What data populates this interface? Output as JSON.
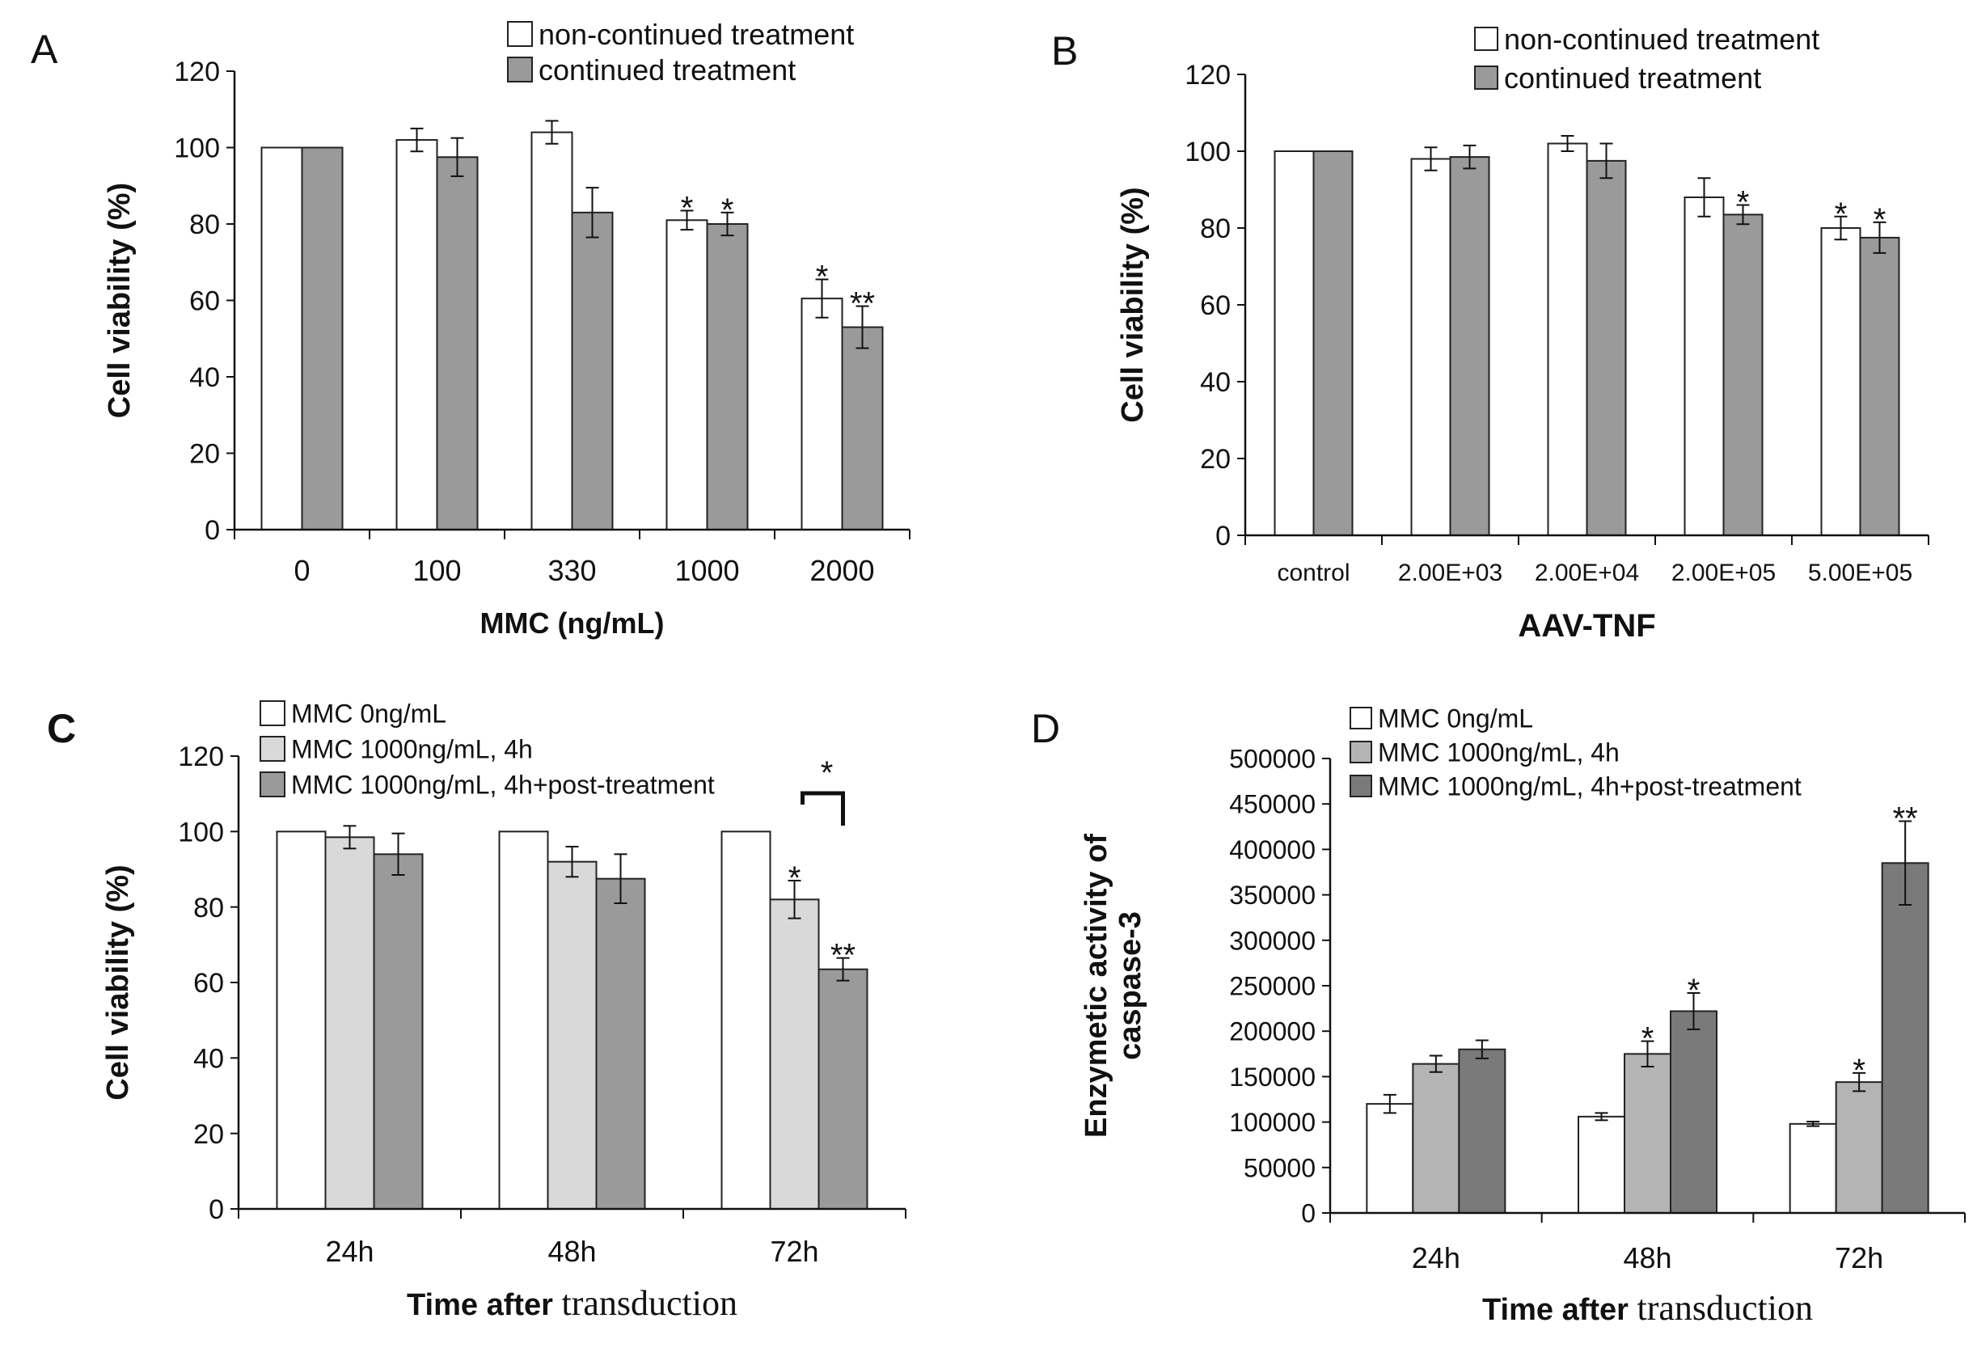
{
  "chart_data": [
    {
      "panel": "A",
      "type": "bar",
      "ylabel": "Cell viability (%)",
      "xlabel": "MMC (ng/mL)",
      "xlabel_parts": null,
      "categories": [
        "0",
        "100",
        "330",
        "1000",
        "2000"
      ],
      "ylim": [
        0,
        120
      ],
      "yticks": [
        0,
        20,
        40,
        60,
        80,
        100,
        120
      ],
      "series": [
        {
          "name": "non-continued treatment",
          "color": "#ffffff",
          "values": [
            100,
            102,
            104,
            81,
            60.5
          ],
          "errors": [
            0,
            3,
            3,
            2.5,
            5
          ]
        },
        {
          "name": "continued treatment",
          "color": "#9a9a9a",
          "values": [
            100,
            97.5,
            83,
            80,
            53
          ],
          "errors": [
            0,
            5,
            6.5,
            3,
            5.5
          ]
        }
      ],
      "annotations": [
        {
          "category": 3,
          "series": 0,
          "text": "*"
        },
        {
          "category": 3,
          "series": 1,
          "text": "*"
        },
        {
          "category": 4,
          "series": 0,
          "text": "*"
        },
        {
          "category": 4,
          "series": 1,
          "text": "**"
        }
      ],
      "bracket": null
    },
    {
      "panel": "B",
      "type": "bar",
      "ylabel": "Cell viability (%)",
      "xlabel": "AAV-TNF",
      "xlabel_parts": null,
      "categories": [
        "control",
        "2.00E+03",
        "2.00E+04",
        "2.00E+05",
        "5.00E+05"
      ],
      "ylim": [
        0,
        120
      ],
      "yticks": [
        0,
        20,
        40,
        60,
        80,
        100,
        120
      ],
      "series": [
        {
          "name": "non-continued treatment",
          "color": "#ffffff",
          "values": [
            100,
            98,
            102,
            88,
            80
          ],
          "errors": [
            0,
            3,
            2,
            5,
            3
          ]
        },
        {
          "name": "continued treatment",
          "color": "#9a9a9a",
          "values": [
            100,
            98.5,
            97.5,
            83.5,
            77.5
          ],
          "errors": [
            0,
            3,
            4.5,
            2.5,
            4
          ]
        }
      ],
      "annotations": [
        {
          "category": 3,
          "series": 1,
          "text": "*"
        },
        {
          "category": 4,
          "series": 0,
          "text": "*"
        },
        {
          "category": 4,
          "series": 1,
          "text": "*"
        }
      ],
      "bracket": null
    },
    {
      "panel": "C",
      "type": "bar",
      "ylabel": "Cell viability (%)",
      "xlabel": null,
      "xlabel_parts": [
        "Time after",
        "transduction"
      ],
      "categories": [
        "24h",
        "48h",
        "72h"
      ],
      "ylim": [
        0,
        120
      ],
      "yticks": [
        0,
        20,
        40,
        60,
        80,
        100,
        120
      ],
      "series": [
        {
          "name": "MMC 0ng/mL",
          "color": "#ffffff",
          "values": [
            100,
            100,
            100
          ],
          "errors": [
            0,
            0,
            0
          ]
        },
        {
          "name": "MMC 1000ng/mL, 4h",
          "color": "#d9d9d9",
          "values": [
            98.5,
            92,
            82
          ],
          "errors": [
            3,
            4,
            5
          ]
        },
        {
          "name": "MMC 1000ng/mL, 4h+post-treatment",
          "color": "#9a9a9a",
          "values": [
            94,
            87.5,
            63.5
          ],
          "errors": [
            5.5,
            6.5,
            3
          ]
        }
      ],
      "annotations": [
        {
          "category": 2,
          "series": 1,
          "text": "*"
        },
        {
          "category": 2,
          "series": 2,
          "text": "**"
        }
      ],
      "bracket": {
        "category": 2,
        "from_series": 1,
        "to_series": 2,
        "text": "*"
      }
    },
    {
      "panel": "D",
      "type": "bar",
      "ylabel": "Enzymetic activity of caspase-3",
      "ylabel_lines": [
        "Enzymetic activity of",
        "caspase-3"
      ],
      "xlabel": null,
      "xlabel_parts": [
        "Time after",
        "transduction"
      ],
      "categories": [
        "24h",
        "48h",
        "72h"
      ],
      "ylim": [
        0,
        500000
      ],
      "yticks": [
        0,
        50000,
        100000,
        150000,
        200000,
        250000,
        300000,
        350000,
        400000,
        450000,
        500000
      ],
      "series": [
        {
          "name": "MMC 0ng/mL",
          "color": "#ffffff",
          "values": [
            120000,
            106000,
            98000
          ],
          "errors": [
            10000,
            4000,
            2500
          ]
        },
        {
          "name": "MMC 1000ng/mL, 4h",
          "color": "#b4b4b4",
          "values": [
            164000,
            175000,
            144000
          ],
          "errors": [
            9000,
            14000,
            10000
          ]
        },
        {
          "name": "MMC 1000ng/mL, 4h+post-treatment",
          "color": "#7a7a7a",
          "values": [
            180000,
            222000,
            385000
          ],
          "errors": [
            10000,
            20000,
            46000
          ]
        }
      ],
      "annotations": [
        {
          "category": 1,
          "series": 1,
          "text": "*"
        },
        {
          "category": 1,
          "series": 2,
          "text": "*"
        },
        {
          "category": 2,
          "series": 1,
          "text": "*"
        },
        {
          "category": 2,
          "series": 2,
          "text": "**"
        }
      ],
      "bracket": null
    }
  ]
}
